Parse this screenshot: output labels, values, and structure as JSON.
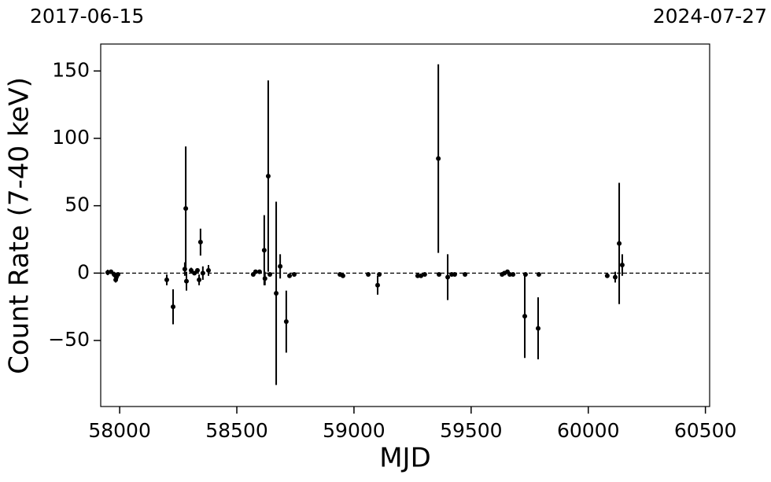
{
  "chart_data": {
    "type": "scatter",
    "xlabel": "MJD",
    "ylabel": "Count Rate (7-40 keV)",
    "top_labels": [
      "2017-06-15",
      "2024-07-27"
    ],
    "xlim": [
      57919,
      60518
    ],
    "ylim": [
      -99,
      170
    ],
    "xticks": [
      58000,
      58500,
      59000,
      59500,
      60000,
      60500
    ],
    "yticks": [
      {
        "value": -50,
        "label": "−50"
      },
      0,
      50,
      100,
      150
    ],
    "reference_line": 0,
    "color": "#000000",
    "x": [
      57949,
      57963,
      57976,
      57983,
      57986,
      57993,
      58201,
      58228,
      58278,
      58282,
      58285,
      58305,
      58319,
      58332,
      58339,
      58345,
      58355,
      58379,
      58570,
      58580,
      58597,
      58617,
      58620,
      58634,
      58641,
      58668,
      58685,
      58711,
      58725,
      58745,
      58940,
      58953,
      59061,
      59101,
      59108,
      59272,
      59286,
      59302,
      59360,
      59363,
      59400,
      59417,
      59430,
      59474,
      59632,
      59642,
      59655,
      59665,
      59679,
      59729,
      59732,
      59786,
      59789,
      60081,
      60115,
      60132,
      60145
    ],
    "values": [
      0.5,
      1,
      -1,
      -5,
      -3,
      -1,
      -5,
      -25,
      3,
      48,
      -6,
      2,
      0,
      2,
      -5,
      23,
      0,
      2,
      -1,
      1,
      1,
      17,
      -4,
      72,
      -1,
      -15,
      5,
      -36,
      -2,
      -1,
      -1,
      -2,
      -1,
      -9,
      -1,
      -2,
      -2,
      -1,
      85,
      -1,
      -3,
      -1,
      -1,
      -1,
      -1,
      0,
      1,
      -1,
      -1,
      -32,
      -1,
      -41,
      -1,
      -2,
      -3,
      22,
      6
    ],
    "errors": [
      2,
      1,
      2,
      2,
      2,
      1,
      4,
      13,
      5,
      46,
      7,
      2,
      1,
      1,
      4,
      10,
      5,
      4,
      1,
      1,
      1,
      26,
      5,
      71,
      1,
      68,
      9,
      23,
      1,
      1,
      1,
      1,
      1,
      7,
      1,
      1,
      1,
      1,
      70,
      1,
      17,
      1,
      1,
      1,
      1,
      1,
      1,
      1,
      1,
      31,
      1,
      23,
      1,
      1,
      4,
      45,
      8
    ]
  }
}
